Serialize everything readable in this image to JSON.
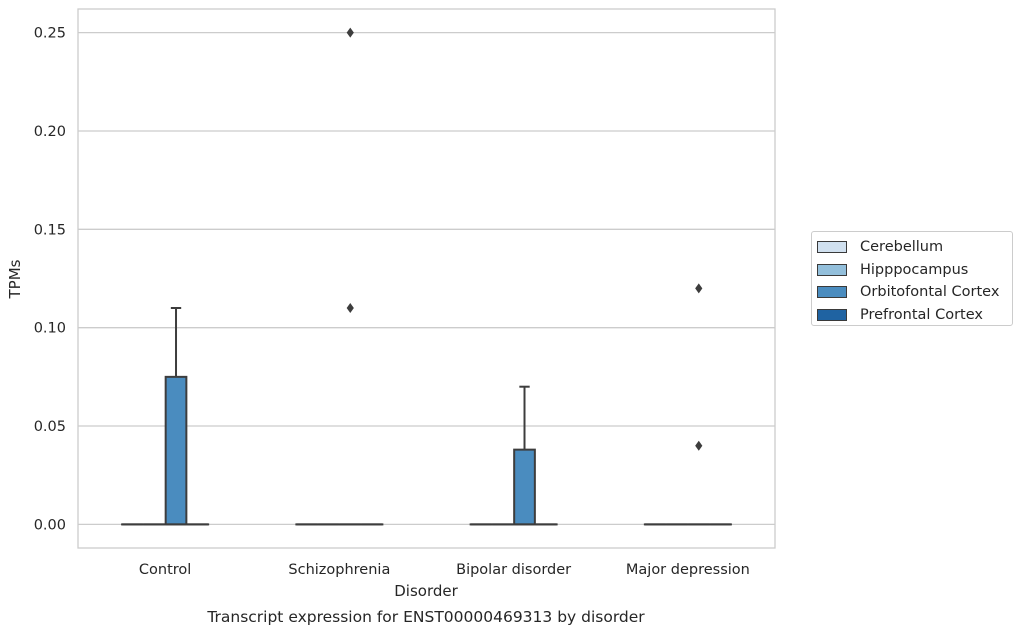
{
  "chart_data": {
    "type": "box",
    "title": "Transcript expression for ENST00000469313 by disorder",
    "xlabel": "Disorder",
    "ylabel": "TPMs",
    "categories": [
      "Control",
      "Schizophrenia",
      "Bipolar disorder",
      "Major depression"
    ],
    "ylim": [
      -0.012,
      0.262
    ],
    "yticks": [
      0.0,
      0.05,
      0.1,
      0.15,
      0.2,
      0.25
    ],
    "ytick_labels": [
      "0.00",
      "0.05",
      "0.10",
      "0.15",
      "0.20",
      "0.25"
    ],
    "grid": true,
    "legend_position": "right",
    "series": [
      {
        "name": "Cerebellum",
        "color": "#d0e0ef",
        "boxes": [
          {
            "min": 0,
            "q1": 0,
            "median": 0,
            "q3": 0,
            "max": 0,
            "outliers": []
          },
          {
            "min": 0,
            "q1": 0,
            "median": 0,
            "q3": 0,
            "max": 0,
            "outliers": []
          },
          {
            "min": 0,
            "q1": 0,
            "median": 0,
            "q3": 0,
            "max": 0,
            "outliers": []
          },
          {
            "min": 0,
            "q1": 0,
            "median": 0,
            "q3": 0,
            "max": 0,
            "outliers": []
          }
        ]
      },
      {
        "name": "Hipppocampus",
        "color": "#93bfdb",
        "boxes": [
          {
            "min": 0,
            "q1": 0,
            "median": 0,
            "q3": 0,
            "max": 0,
            "outliers": []
          },
          {
            "min": 0,
            "q1": 0,
            "median": 0,
            "q3": 0,
            "max": 0,
            "outliers": []
          },
          {
            "min": 0,
            "q1": 0,
            "median": 0,
            "q3": 0,
            "max": 0,
            "outliers": []
          },
          {
            "min": 0,
            "q1": 0,
            "median": 0,
            "q3": 0,
            "max": 0,
            "outliers": []
          }
        ]
      },
      {
        "name": "Orbitofontal Cortex",
        "color": "#4a8cbf",
        "boxes": [
          {
            "min": 0,
            "q1": 0,
            "median": 0,
            "q3": 0.075,
            "max": 0.11,
            "outliers": []
          },
          {
            "min": 0,
            "q1": 0,
            "median": 0,
            "q3": 0,
            "max": 0,
            "outliers": [
              0.11,
              0.25
            ]
          },
          {
            "min": 0,
            "q1": 0,
            "median": 0,
            "q3": 0.038,
            "max": 0.07,
            "outliers": []
          },
          {
            "min": 0,
            "q1": 0,
            "median": 0,
            "q3": 0,
            "max": 0,
            "outliers": [
              0.04,
              0.12
            ]
          }
        ]
      },
      {
        "name": "Prefrontal Cortex",
        "color": "#1f63a2",
        "boxes": [
          {
            "min": 0,
            "q1": 0,
            "median": 0,
            "q3": 0,
            "max": 0,
            "outliers": []
          },
          {
            "min": 0,
            "q1": 0,
            "median": 0,
            "q3": 0,
            "max": 0,
            "outliers": []
          },
          {
            "min": 0,
            "q1": 0,
            "median": 0,
            "q3": 0,
            "max": 0,
            "outliers": []
          },
          {
            "min": 0,
            "q1": 0,
            "median": 0,
            "q3": 0,
            "max": 0,
            "outliers": []
          }
        ]
      }
    ]
  }
}
